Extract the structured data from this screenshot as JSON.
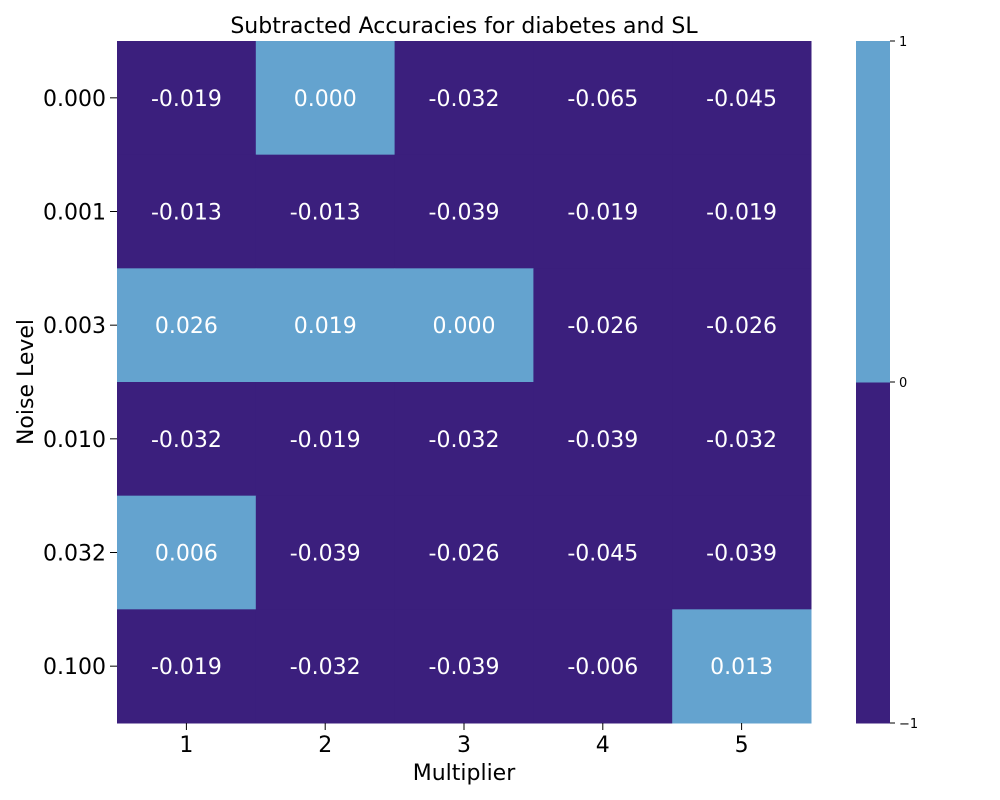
{
  "chart_data": {
    "type": "heatmap",
    "title": "Subtracted Accuracies for diabetes and SL",
    "xlabel": "Multiplier",
    "ylabel": "Noise Level",
    "x_categories": [
      "1",
      "2",
      "3",
      "4",
      "5"
    ],
    "y_categories": [
      "0.000",
      "0.001",
      "0.003",
      "0.010",
      "0.032",
      "0.100"
    ],
    "values": [
      [
        -0.019,
        0.0,
        -0.032,
        -0.065,
        -0.045
      ],
      [
        -0.013,
        -0.013,
        -0.039,
        -0.019,
        -0.019
      ],
      [
        0.026,
        0.019,
        0.0,
        -0.026,
        -0.026
      ],
      [
        -0.032,
        -0.019,
        -0.032,
        -0.039,
        -0.032
      ],
      [
        0.006,
        -0.039,
        -0.026,
        -0.045,
        -0.039
      ],
      [
        -0.019,
        -0.032,
        -0.039,
        -0.006,
        0.013
      ]
    ],
    "labels": [
      [
        "-0.019",
        "0.000",
        "-0.032",
        "-0.065",
        "-0.045"
      ],
      [
        "-0.013",
        "-0.013",
        "-0.039",
        "-0.019",
        "-0.019"
      ],
      [
        "0.026",
        "0.019",
        "0.000",
        "-0.026",
        "-0.026"
      ],
      [
        "-0.032",
        "-0.019",
        "-0.032",
        "-0.039",
        "-0.032"
      ],
      [
        "0.006",
        "-0.039",
        "-0.026",
        "-0.045",
        "-0.039"
      ],
      [
        "-0.019",
        "-0.032",
        "-0.039",
        "-0.006",
        "0.013"
      ]
    ],
    "colorbar": {
      "range": [
        -1,
        1
      ],
      "ticks": [
        {
          "value": 1,
          "label": "1"
        },
        {
          "value": 0,
          "label": "0"
        },
        {
          "value": -1,
          "label": "−1"
        }
      ],
      "bins": [
        {
          "min": -1,
          "max": 0,
          "color": "#3b1f7d"
        },
        {
          "min": 0,
          "max": 1,
          "color": "#64a3cf"
        }
      ]
    },
    "colors": {
      "negative": "#3b1f7d",
      "non_negative": "#64a3cf",
      "annotation_text": "#ffffff"
    },
    "legend": "colorbar-right",
    "grid": false
  }
}
